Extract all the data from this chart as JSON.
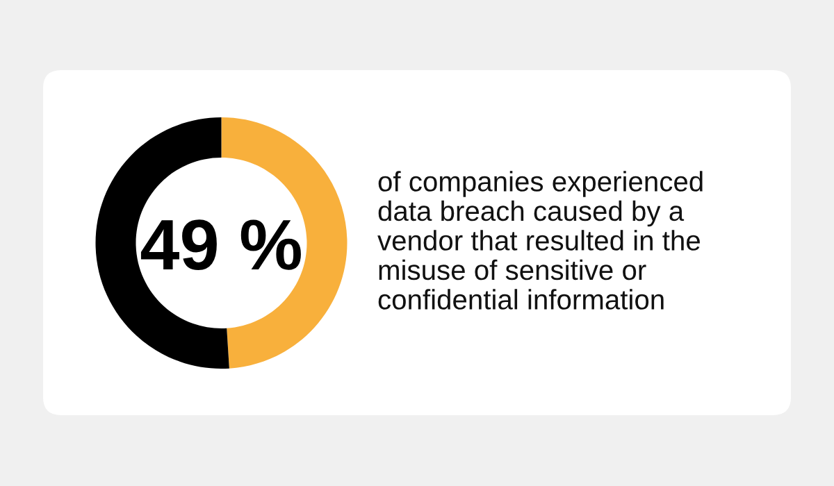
{
  "chart_data": {
    "type": "donut",
    "categories": [
      null,
      null
    ],
    "values": [
      49,
      51
    ],
    "colors": [
      "#f8b03c",
      "#000000"
    ],
    "value_labels": [
      "49 %",
      null
    ],
    "annotations": [
      "of companies experienced\ndata breach caused by a\nvendor that resulted in the\nmisuse of sensitive or\nconfidential information"
    ]
  }
}
